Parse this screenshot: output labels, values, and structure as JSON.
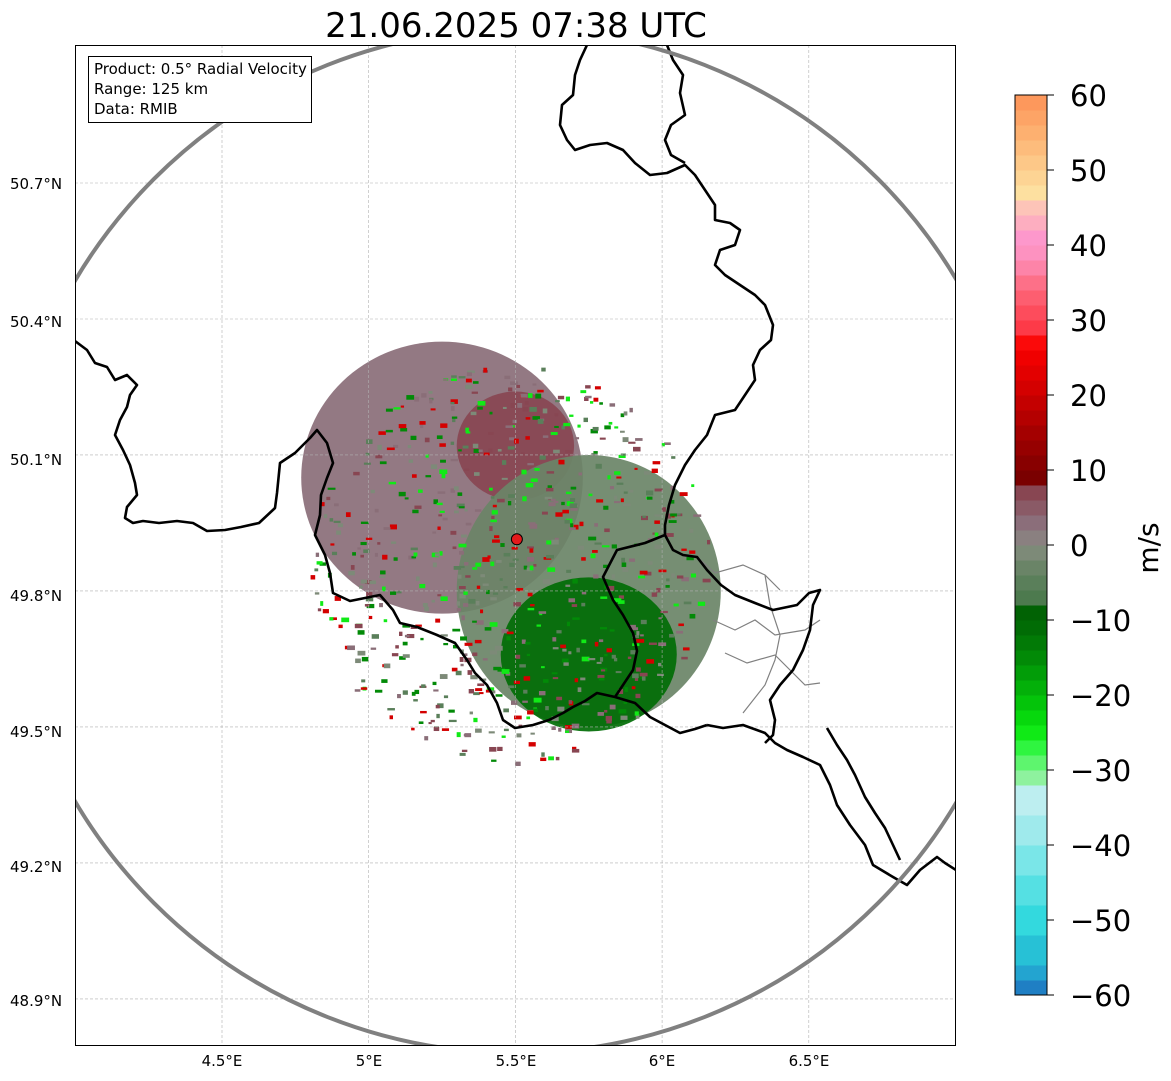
{
  "title": "21.06.2025 07:38 UTC",
  "info": {
    "product": "Product: 0.5° Radial Velocity",
    "range": "Range: 125 km",
    "data": "Data: RMIB"
  },
  "axes": {
    "lon_ticks": [
      "4.5°E",
      "5°E",
      "5.5°E",
      "6°E",
      "6.5°E"
    ],
    "lat_ticks": [
      "50.7°N",
      "50.4°N",
      "50.1°N",
      "49.8°N",
      "49.5°N",
      "49.2°N",
      "48.9°N"
    ],
    "lon_values": [
      4.5,
      5.0,
      5.5,
      6.0,
      6.5
    ],
    "lat_values": [
      50.7,
      50.4,
      50.1,
      49.8,
      49.5,
      49.2,
      48.9
    ],
    "lon_range": [
      4.0,
      7.0
    ],
    "lat_range": [
      48.8,
      51.0
    ],
    "grid": true
  },
  "radar": {
    "lon": 5.505,
    "lat": 49.914,
    "marker_color": "#e41a1c",
    "range_ring_color": "#808080"
  },
  "colorbar": {
    "unit": "m/s",
    "min": -60,
    "max": 60,
    "tick_labels": [
      "60",
      "50",
      "40",
      "30",
      "20",
      "10",
      "0",
      "−10",
      "−20",
      "−30",
      "−40",
      "−50",
      "−60"
    ],
    "tick_values": [
      60,
      50,
      40,
      30,
      20,
      10,
      0,
      -10,
      -20,
      -30,
      -40,
      -50,
      -60
    ],
    "bands": [
      {
        "from": -60,
        "to": -58,
        "color": "#1f7fc4"
      },
      {
        "from": -58,
        "to": -56,
        "color": "#23a4d0"
      },
      {
        "from": -56,
        "to": -52,
        "color": "#27c1d6"
      },
      {
        "from": -52,
        "to": -48,
        "color": "#33d9de"
      },
      {
        "from": -48,
        "to": -44,
        "color": "#55e0e3"
      },
      {
        "from": -44,
        "to": -40,
        "color": "#7ae6e8"
      },
      {
        "from": -40,
        "to": -36,
        "color": "#9feaec"
      },
      {
        "from": -36,
        "to": -32,
        "color": "#bdeef0"
      },
      {
        "from": -32,
        "to": -30,
        "color": "#8ef29e"
      },
      {
        "from": -30,
        "to": -28,
        "color": "#5ef56e"
      },
      {
        "from": -28,
        "to": -26,
        "color": "#2ff540"
      },
      {
        "from": -26,
        "to": -24,
        "color": "#10ea16"
      },
      {
        "from": -24,
        "to": -22,
        "color": "#07d80d"
      },
      {
        "from": -22,
        "to": -20,
        "color": "#04c40a"
      },
      {
        "from": -20,
        "to": -18,
        "color": "#03b009"
      },
      {
        "from": -18,
        "to": -16,
        "color": "#029d08"
      },
      {
        "from": -16,
        "to": -14,
        "color": "#028a07"
      },
      {
        "from": -14,
        "to": -12,
        "color": "#027a06"
      },
      {
        "from": -12,
        "to": -10,
        "color": "#016c05"
      },
      {
        "from": -10,
        "to": -8,
        "color": "#016204"
      },
      {
        "from": -8,
        "to": -6,
        "color": "#4d7a4e"
      },
      {
        "from": -6,
        "to": -4,
        "color": "#5a7f5a"
      },
      {
        "from": -4,
        "to": -2,
        "color": "#6a8467"
      },
      {
        "from": -2,
        "to": 0,
        "color": "#7d8a78"
      },
      {
        "from": 0,
        "to": 2,
        "color": "#8a8080"
      },
      {
        "from": 2,
        "to": 4,
        "color": "#8b6e7a"
      },
      {
        "from": 4,
        "to": 6,
        "color": "#8a5a66"
      },
      {
        "from": 6,
        "to": 8,
        "color": "#884652"
      },
      {
        "from": 8,
        "to": 10,
        "color": "#7a0000"
      },
      {
        "from": 10,
        "to": 12,
        "color": "#880000"
      },
      {
        "from": 12,
        "to": 14,
        "color": "#960000"
      },
      {
        "from": 14,
        "to": 16,
        "color": "#a40000"
      },
      {
        "from": 16,
        "to": 18,
        "color": "#b40000"
      },
      {
        "from": 18,
        "to": 20,
        "color": "#c40000"
      },
      {
        "from": 20,
        "to": 22,
        "color": "#d40000"
      },
      {
        "from": 22,
        "to": 24,
        "color": "#e30000"
      },
      {
        "from": 24,
        "to": 26,
        "color": "#f00000"
      },
      {
        "from": 26,
        "to": 28,
        "color": "#fb0a0a"
      },
      {
        "from": 28,
        "to": 30,
        "color": "#fd3a48"
      },
      {
        "from": 30,
        "to": 32,
        "color": "#fd4c5c"
      },
      {
        "from": 32,
        "to": 34,
        "color": "#fd5e70"
      },
      {
        "from": 34,
        "to": 36,
        "color": "#fd7088"
      },
      {
        "from": 36,
        "to": 38,
        "color": "#fd84a8"
      },
      {
        "from": 38,
        "to": 40,
        "color": "#fd92c0"
      },
      {
        "from": 40,
        "to": 42,
        "color": "#fd98cc"
      },
      {
        "from": 42,
        "to": 44,
        "color": "#fdaec0"
      },
      {
        "from": 44,
        "to": 46,
        "color": "#fdc4b8"
      },
      {
        "from": 46,
        "to": 48,
        "color": "#fde0a0"
      },
      {
        "from": 48,
        "to": 50,
        "color": "#fdd494"
      },
      {
        "from": 50,
        "to": 52,
        "color": "#fdc888"
      },
      {
        "from": 52,
        "to": 54,
        "color": "#fdbc7c"
      },
      {
        "from": 54,
        "to": 56,
        "color": "#fdb070"
      },
      {
        "from": 56,
        "to": 58,
        "color": "#fda466"
      },
      {
        "from": 58,
        "to": 60,
        "color": "#fd985c"
      }
    ]
  },
  "echo_regions": [
    {
      "name": "outbound-area",
      "color": "#8a6e78",
      "center_lon": 5.25,
      "center_lat": 50.05,
      "rx_deg": 0.48,
      "ry_deg": 0.3
    },
    {
      "name": "outbound-core",
      "color": "#884652",
      "center_lon": 5.5,
      "center_lat": 50.12,
      "rx_deg": 0.2,
      "ry_deg": 0.12
    },
    {
      "name": "near-zero-area",
      "color": "#6a8467",
      "center_lon": 5.75,
      "center_lat": 49.8,
      "rx_deg": 0.45,
      "ry_deg": 0.3
    },
    {
      "name": "inbound-core",
      "color": "#016c05",
      "center_lon": 5.75,
      "center_lat": 49.66,
      "rx_deg": 0.3,
      "ry_deg": 0.17
    }
  ]
}
